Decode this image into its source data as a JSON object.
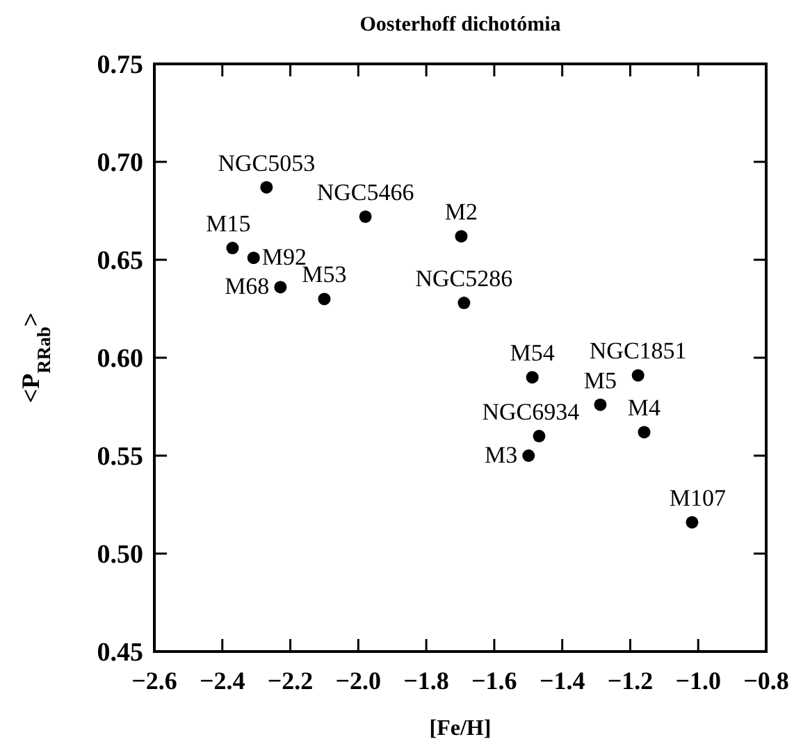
{
  "chart_data": {
    "type": "scatter",
    "title": "Oosterhoff dichotómia",
    "xlabel": "[Fe/H]",
    "ylabel": "<P$_{RRab}$>",
    "x": [
      -2.27,
      -2.37,
      -2.308,
      -2.229,
      -2.1,
      -1.979,
      -1.697,
      -1.689,
      -1.488,
      -1.177,
      -1.288,
      -1.159,
      -1.468,
      -1.499,
      -1.018
    ],
    "series": [
      {
        "color": "#000000",
        "values": [
          0.687,
          0.656,
          0.651,
          0.636,
          0.63,
          0.672,
          0.662,
          0.628,
          0.59,
          0.591,
          0.576,
          0.562,
          0.56,
          0.55,
          0.516
        ]
      }
    ],
    "annotations": [
      {
        "text": "NGC5053",
        "x": -2.27,
        "y": 0.687
      },
      {
        "text": "M15",
        "x": -2.37,
        "y": 0.656
      },
      {
        "text": "M92",
        "x": -2.308,
        "y": 0.651
      },
      {
        "text": "M68",
        "x": -2.229,
        "y": 0.636
      },
      {
        "text": "M53",
        "x": -2.1,
        "y": 0.63
      },
      {
        "text": "NGC5466",
        "x": -1.979,
        "y": 0.672
      },
      {
        "text": "M2",
        "x": -1.697,
        "y": 0.662
      },
      {
        "text": "NGC5286",
        "x": -1.689,
        "y": 0.628
      },
      {
        "text": "M54",
        "x": -1.488,
        "y": 0.59
      },
      {
        "text": "NGC1851",
        "x": -1.177,
        "y": 0.591
      },
      {
        "text": "M5",
        "x": -1.288,
        "y": 0.576
      },
      {
        "text": "M4",
        "x": -1.159,
        "y": 0.562
      },
      {
        "text": "NGC6934",
        "x": -1.468,
        "y": 0.56
      },
      {
        "text": "M3",
        "x": -1.499,
        "y": 0.55
      },
      {
        "text": "M107",
        "x": -1.018,
        "y": 0.516
      }
    ],
    "xlim": [
      -2.6,
      -0.8
    ],
    "ylim": [
      0.45,
      0.75
    ],
    "xticks": [
      {
        "value": -2.6,
        "label": "−2.6"
      },
      {
        "value": -2.4,
        "label": "−2.4"
      },
      {
        "value": -2.2,
        "label": "−2.2"
      },
      {
        "value": -2.0,
        "label": "−2.0"
      },
      {
        "value": -1.8,
        "label": "−1.8"
      },
      {
        "value": -1.6,
        "label": "−1.6"
      },
      {
        "value": -1.4,
        "label": "−1.4"
      },
      {
        "value": -1.2,
        "label": "−1.2"
      },
      {
        "value": -1.0,
        "label": "−1.0"
      },
      {
        "value": -0.8,
        "label": "−0.8"
      }
    ],
    "yticks": [
      {
        "value": 0.45,
        "label": "0.45"
      },
      {
        "value": 0.5,
        "label": "0.50"
      },
      {
        "value": 0.55,
        "label": "0.55"
      },
      {
        "value": 0.6,
        "label": "0.60"
      },
      {
        "value": 0.65,
        "label": "0.65"
      },
      {
        "value": 0.7,
        "label": "0.70"
      },
      {
        "value": 0.75,
        "label": "0.75"
      }
    ],
    "marker": "circle",
    "grid": false
  }
}
